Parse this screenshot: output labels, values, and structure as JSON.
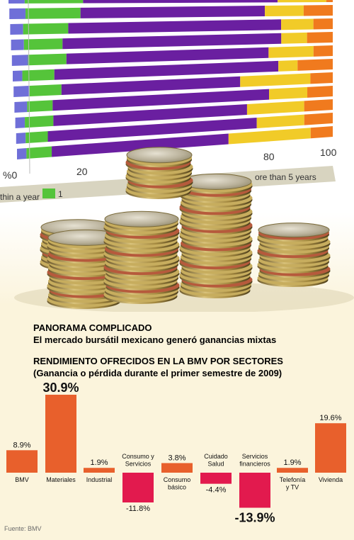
{
  "photo": {
    "scale_labels": [
      "%0",
      "20",
      "80",
      "100"
    ],
    "legend_left": "thin a year",
    "legend_left_number": "1",
    "legend_right": "ore than 5 years",
    "colors": {
      "blue": "#6f6fd8",
      "green": "#55c43a",
      "purple": "#6a1fa0",
      "yellow": "#f1cb28",
      "orange": "#f07a1e"
    }
  },
  "headline": {
    "line1": "PANORAMA COMPLICADO",
    "line2": "El mercado bursátil mexicano generó ganancias mixtas"
  },
  "chart_title": {
    "line1": "RENDIMIENTO OFRECIDOS EN LA BMV POR SECTORES",
    "line2": "(Ganancia o pérdida durante el primer semestre de 2009)"
  },
  "chart_data": {
    "type": "bar",
    "categories": [
      "BMV",
      "Materiales",
      "Industrial",
      "Consumo y Servicios",
      "Consumo básico",
      "Cuidado Salud",
      "Servicios financieros",
      "Telefonía y TV",
      "Vivienda"
    ],
    "category_lines": [
      [
        "BMV"
      ],
      [
        "Materiales"
      ],
      [
        "Industrial"
      ],
      [
        "Consumo y",
        "Servicios"
      ],
      [
        "Consumo",
        "básico"
      ],
      [
        "Cuidado",
        "Salud"
      ],
      [
        "Servicios",
        "financieros"
      ],
      [
        "Telefonía",
        "y TV"
      ],
      [
        "Vivienda"
      ]
    ],
    "values": [
      8.9,
      30.9,
      1.9,
      -11.8,
      3.8,
      -4.4,
      -13.9,
      1.9,
      19.6
    ],
    "value_labels": [
      "8.9%",
      "30.9%",
      "1.9%",
      "-11.8%",
      "3.8%",
      "-4.4%",
      "-13.9%",
      "1.9%",
      "19.6%"
    ],
    "emphasized_labels": [
      "30.9%",
      "-13.9%"
    ],
    "units": "%",
    "colors": {
      "positive": "#e8602c",
      "negative": "#e21a4e"
    }
  },
  "source": "Fuente: BMV"
}
